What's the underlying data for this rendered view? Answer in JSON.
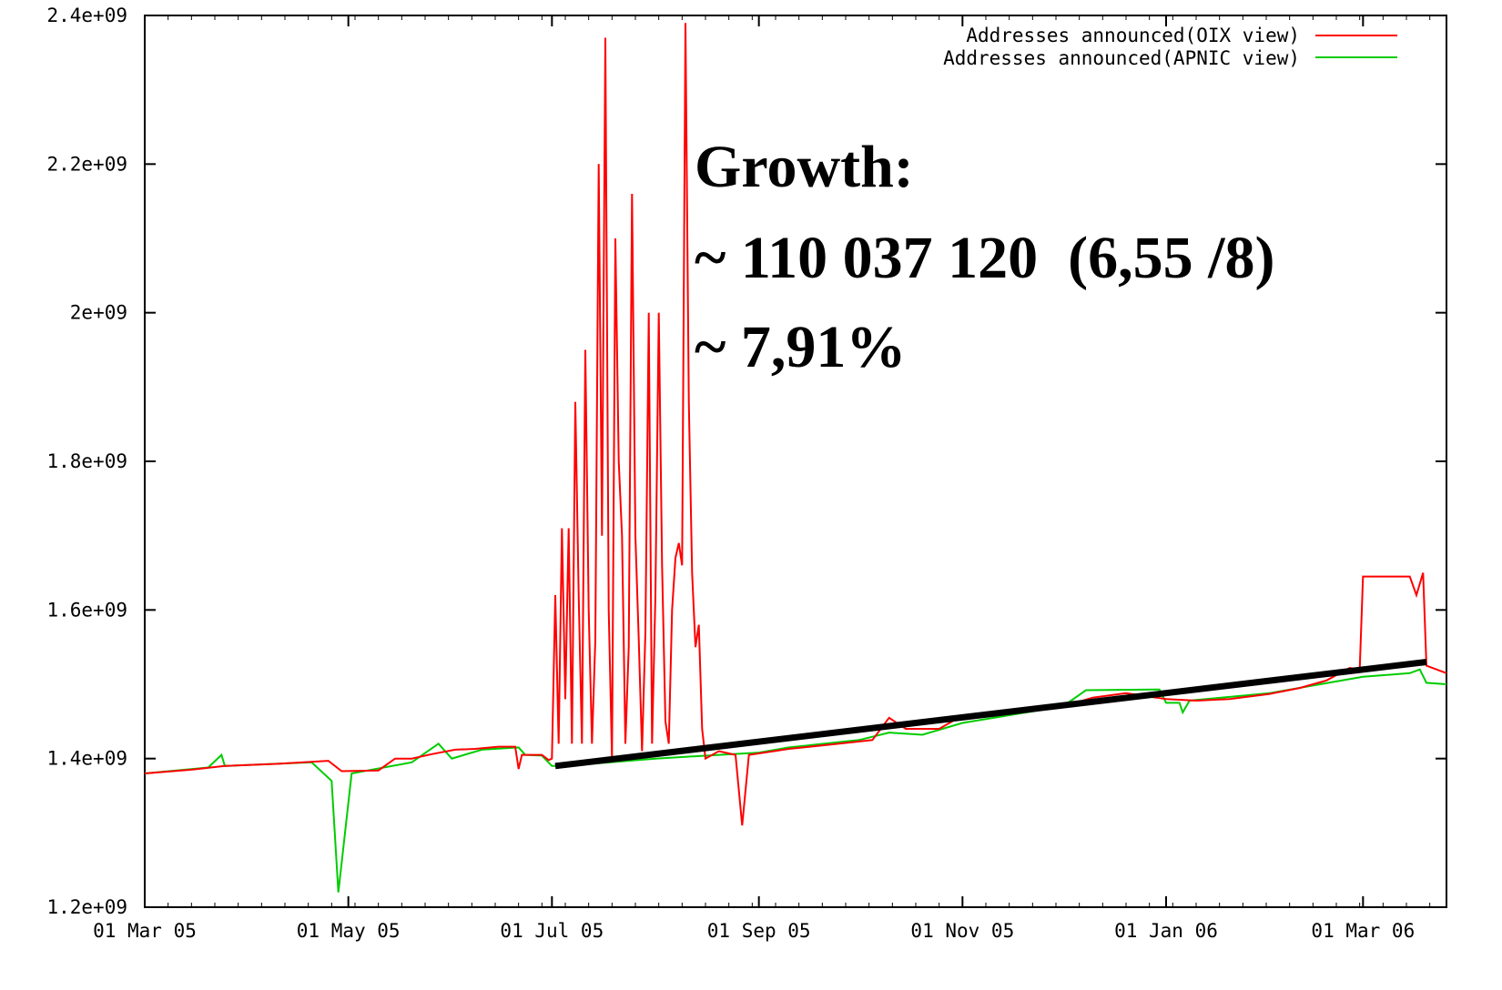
{
  "chart_data": {
    "type": "line",
    "title": "",
    "xlabel": "",
    "ylabel": "",
    "x_tick_labels": [
      "01 Mar 05",
      "01 May 05",
      "01 Jul 05",
      "01 Sep 05",
      "01 Nov 05",
      "01 Jan 06",
      "01 Mar 06"
    ],
    "x_tick_dates": [
      "2005-03-01",
      "2005-05-01",
      "2005-07-01",
      "2005-09-01",
      "2005-11-01",
      "2006-01-01",
      "2006-03-01"
    ],
    "xlim": [
      "2005-03-01",
      "2006-03-26"
    ],
    "y_tick_labels": [
      "1.2e+09",
      "1.4e+09",
      "1.6e+09",
      "1.8e+09",
      "2e+09",
      "2.2e+09",
      "2.4e+09"
    ],
    "y_tick_values": [
      1200000000,
      1400000000,
      1600000000,
      1800000000,
      2000000000,
      2200000000,
      2400000000
    ],
    "ylim": [
      1200000000,
      2400000000
    ],
    "grid": false,
    "legend_position": "top-right",
    "series": [
      {
        "name": "Addresses announced(OIX view)",
        "color": "#ff0000",
        "points": [
          [
            "2005-03-01",
            1380000000
          ],
          [
            "2005-03-15",
            1385000000
          ],
          [
            "2005-03-25",
            1390000000
          ],
          [
            "2005-04-10",
            1393000000
          ],
          [
            "2005-04-25",
            1397000000
          ],
          [
            "2005-04-29",
            1383000000
          ],
          [
            "2005-05-10",
            1384000000
          ],
          [
            "2005-05-15",
            1400000000
          ],
          [
            "2005-05-20",
            1400000000
          ],
          [
            "2005-05-26",
            1406000000
          ],
          [
            "2005-06-02",
            1412000000
          ],
          [
            "2005-06-08",
            1413000000
          ],
          [
            "2005-06-15",
            1416000000
          ],
          [
            "2005-06-20",
            1416000000
          ],
          [
            "2005-06-21",
            1386000000
          ],
          [
            "2005-06-22",
            1405000000
          ],
          [
            "2005-06-28",
            1405000000
          ],
          [
            "2005-06-30",
            1398000000
          ],
          [
            "2005-07-01",
            1400000000
          ],
          [
            "2005-07-02",
            1620000000
          ],
          [
            "2005-07-03",
            1420000000
          ],
          [
            "2005-07-04",
            1710000000
          ],
          [
            "2005-07-05",
            1480000000
          ],
          [
            "2005-07-06",
            1710000000
          ],
          [
            "2005-07-07",
            1420000000
          ],
          [
            "2005-07-08",
            1880000000
          ],
          [
            "2005-07-09",
            1620000000
          ],
          [
            "2005-07-10",
            1420000000
          ],
          [
            "2005-07-11",
            1950000000
          ],
          [
            "2005-07-12",
            1600000000
          ],
          [
            "2005-07-13",
            1420000000
          ],
          [
            "2005-07-14",
            1560000000
          ],
          [
            "2005-07-15",
            2200000000
          ],
          [
            "2005-07-16",
            1700000000
          ],
          [
            "2005-07-17",
            2370000000
          ],
          [
            "2005-07-18",
            1600000000
          ],
          [
            "2005-07-19",
            1400000000
          ],
          [
            "2005-07-20",
            2100000000
          ],
          [
            "2005-07-21",
            1800000000
          ],
          [
            "2005-07-22",
            1700000000
          ],
          [
            "2005-07-23",
            1420000000
          ],
          [
            "2005-07-24",
            1550000000
          ],
          [
            "2005-07-25",
            2160000000
          ],
          [
            "2005-07-26",
            1700000000
          ],
          [
            "2005-07-27",
            1560000000
          ],
          [
            "2005-07-28",
            1410000000
          ],
          [
            "2005-07-29",
            1570000000
          ],
          [
            "2005-07-30",
            2000000000
          ],
          [
            "2005-07-31",
            1420000000
          ],
          [
            "2005-08-01",
            1620000000
          ],
          [
            "2005-08-02",
            2000000000
          ],
          [
            "2005-08-03",
            1660000000
          ],
          [
            "2005-08-04",
            1450000000
          ],
          [
            "2005-08-05",
            1420000000
          ],
          [
            "2005-08-06",
            1600000000
          ],
          [
            "2005-08-07",
            1670000000
          ],
          [
            "2005-08-08",
            1690000000
          ],
          [
            "2005-08-09",
            1660000000
          ],
          [
            "2005-08-10",
            2390000000
          ],
          [
            "2005-08-11",
            1880000000
          ],
          [
            "2005-08-12",
            1650000000
          ],
          [
            "2005-08-13",
            1550000000
          ],
          [
            "2005-08-14",
            1580000000
          ],
          [
            "2005-08-15",
            1440000000
          ],
          [
            "2005-08-16",
            1400000000
          ],
          [
            "2005-08-20",
            1410000000
          ],
          [
            "2005-08-25",
            1405000000
          ],
          [
            "2005-08-27",
            1310000000
          ],
          [
            "2005-08-29",
            1405000000
          ],
          [
            "2005-09-10",
            1413000000
          ],
          [
            "2005-09-25",
            1420000000
          ],
          [
            "2005-10-05",
            1425000000
          ],
          [
            "2005-10-10",
            1455000000
          ],
          [
            "2005-10-15",
            1440000000
          ],
          [
            "2005-10-25",
            1440000000
          ],
          [
            "2005-11-01",
            1458000000
          ],
          [
            "2005-11-10",
            1460000000
          ],
          [
            "2005-11-20",
            1465000000
          ],
          [
            "2005-12-01",
            1470000000
          ],
          [
            "2005-12-10",
            1482000000
          ],
          [
            "2005-12-20",
            1488000000
          ],
          [
            "2006-01-01",
            1480000000
          ],
          [
            "2006-01-10",
            1478000000
          ],
          [
            "2006-01-20",
            1480000000
          ],
          [
            "2006-02-01",
            1487000000
          ],
          [
            "2006-02-10",
            1495000000
          ],
          [
            "2006-02-18",
            1505000000
          ],
          [
            "2006-02-25",
            1522000000
          ],
          [
            "2006-02-28",
            1520000000
          ],
          [
            "2006-03-01",
            1645000000
          ],
          [
            "2006-03-10",
            1645000000
          ],
          [
            "2006-03-15",
            1645000000
          ],
          [
            "2006-03-17",
            1620000000
          ],
          [
            "2006-03-19",
            1650000000
          ],
          [
            "2006-03-20",
            1525000000
          ],
          [
            "2006-03-26",
            1515000000
          ]
        ]
      },
      {
        "name": "Addresses announced(APNIC view)",
        "color": "#00cc00",
        "points": [
          [
            "2005-03-01",
            1380000000
          ],
          [
            "2005-03-20",
            1388000000
          ],
          [
            "2005-03-24",
            1405000000
          ],
          [
            "2005-03-25",
            1390000000
          ],
          [
            "2005-04-20",
            1395000000
          ],
          [
            "2005-04-26",
            1370000000
          ],
          [
            "2005-04-28",
            1220000000
          ],
          [
            "2005-04-30",
            1300000000
          ],
          [
            "2005-05-02",
            1380000000
          ],
          [
            "2005-05-20",
            1395000000
          ],
          [
            "2005-05-28",
            1420000000
          ],
          [
            "2005-06-01",
            1400000000
          ],
          [
            "2005-06-10",
            1412000000
          ],
          [
            "2005-06-21",
            1415000000
          ],
          [
            "2005-06-23",
            1405000000
          ],
          [
            "2005-06-28",
            1404000000
          ],
          [
            "2005-07-01",
            1390000000
          ],
          [
            "2005-07-05",
            1390000000
          ],
          [
            "2005-08-01",
            1400000000
          ],
          [
            "2005-08-20",
            1405000000
          ],
          [
            "2005-09-01",
            1408000000
          ],
          [
            "2005-09-10",
            1415000000
          ],
          [
            "2005-10-01",
            1425000000
          ],
          [
            "2005-10-10",
            1435000000
          ],
          [
            "2005-10-20",
            1432000000
          ],
          [
            "2005-11-01",
            1448000000
          ],
          [
            "2005-11-20",
            1462000000
          ],
          [
            "2005-12-01",
            1470000000
          ],
          [
            "2005-12-08",
            1492000000
          ],
          [
            "2005-12-30",
            1493000000
          ],
          [
            "2006-01-01",
            1475000000
          ],
          [
            "2006-01-05",
            1475000000
          ],
          [
            "2006-01-06",
            1462000000
          ],
          [
            "2006-01-08",
            1478000000
          ],
          [
            "2006-02-01",
            1488000000
          ],
          [
            "2006-02-20",
            1503000000
          ],
          [
            "2006-03-01",
            1510000000
          ],
          [
            "2006-03-15",
            1515000000
          ],
          [
            "2006-03-18",
            1520000000
          ],
          [
            "2006-03-20",
            1502000000
          ],
          [
            "2006-03-26",
            1500000000
          ]
        ]
      }
    ],
    "trend_line": {
      "color": "#000000",
      "from": [
        "2005-07-02",
        1390000000
      ],
      "to": [
        "2006-03-20",
        1530000000
      ]
    },
    "annotations": [
      "Growth:",
      "~ 110 037 120  (6,55 /8)",
      "~ 7,91%"
    ]
  }
}
